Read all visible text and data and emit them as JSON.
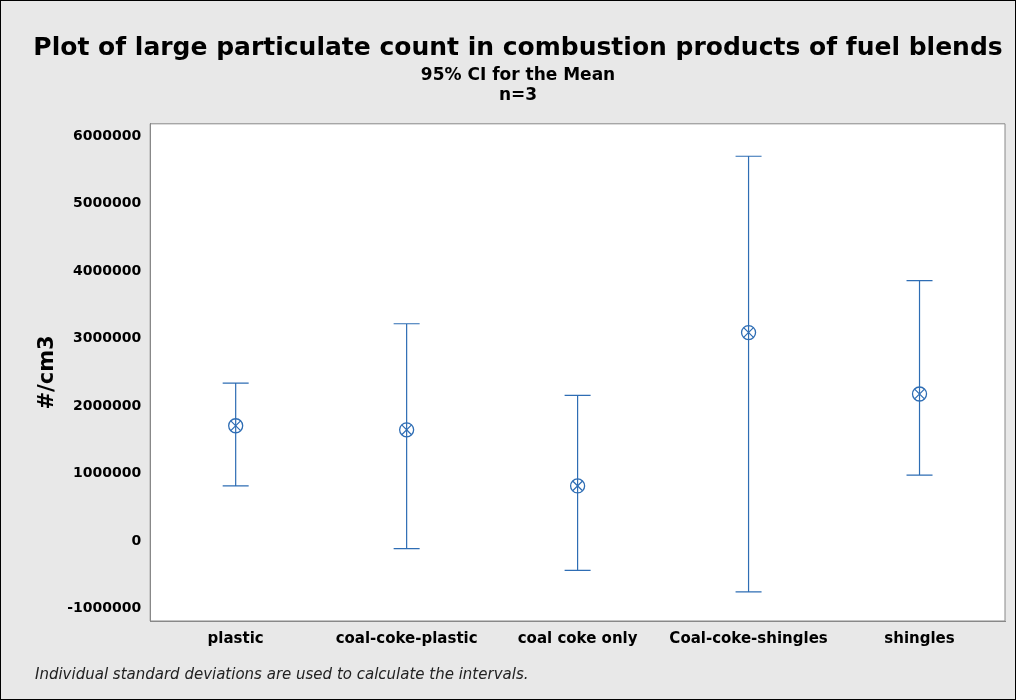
{
  "chart_data": {
    "type": "scatter",
    "title": "Plot of large particulate count in combustion products of fuel blends",
    "subtitle": "95% CI for the Mean\nn=3",
    "ylabel": "#/cm3",
    "categories": [
      "plastic",
      "coal-coke-plastic",
      "coal coke only",
      "Coal-coke-shingles",
      "shingles"
    ],
    "series": [
      {
        "color": "#2e6db4",
        "values": [
          1710000,
          1650000,
          820000,
          3090000,
          2180000
        ],
        "errors": [
          [
            820000,
            2340000
          ],
          [
            -110000,
            3220000
          ],
          [
            -430000,
            2160000
          ],
          [
            -750000,
            5700000
          ],
          [
            980000,
            3860000
          ]
        ]
      }
    ],
    "ylim": [
      -1180000,
      6180000
    ],
    "yticks": [
      -1000000,
      0,
      1000000,
      2000000,
      3000000,
      4000000,
      5000000,
      6000000
    ],
    "grid": false,
    "legend": false,
    "marker": "circle",
    "annotations": [
      "Individual standard deviations are used to calculate the intervals."
    ]
  }
}
